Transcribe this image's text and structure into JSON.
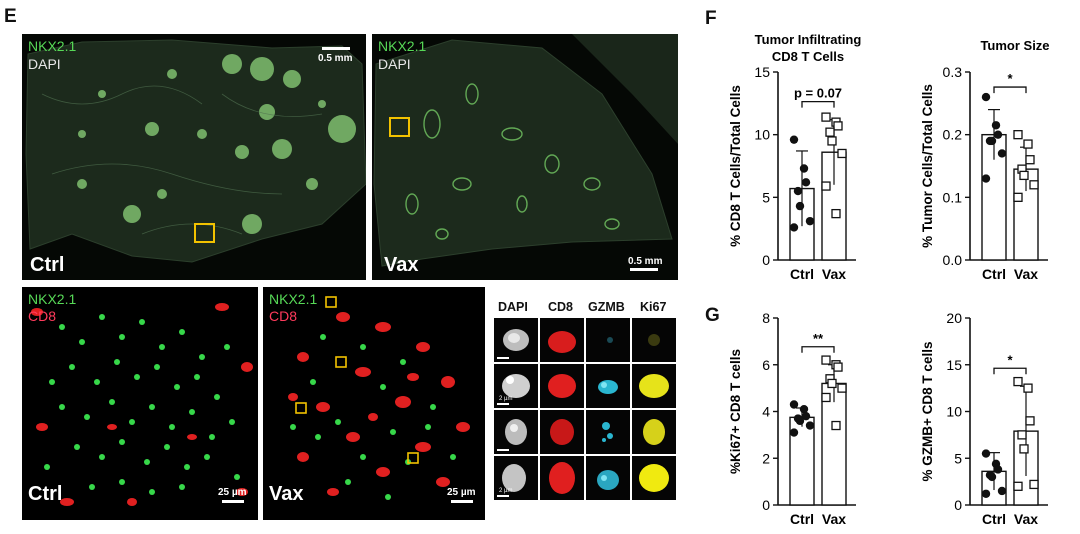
{
  "panels": {
    "E": "E",
    "F": "F",
    "G": "G"
  },
  "microscopy": {
    "channel_nkx": "NKX2.1",
    "channel_dapi": "DAPI",
    "channel_cd8": "CD8",
    "ctrl": "Ctrl",
    "vax": "Vax",
    "scale_05": "0.5 mm",
    "scale_25": "25 µm",
    "zoom_box_color": "#f2c200",
    "inset_headers": [
      "DAPI",
      "CD8",
      "GZMB",
      "Ki67"
    ],
    "inset_scale": "2 µm"
  },
  "chart_data": [
    {
      "type": "bar",
      "title": "Tumor Infiltrating CD8 T Cells",
      "ylabel": "% CD8 T Cells/Total Cells",
      "categories": [
        "Ctrl",
        "Vax"
      ],
      "values": [
        5.7,
        8.6
      ],
      "error": [
        3.0,
        2.6
      ],
      "ylim": [
        0,
        15
      ],
      "yticks": [
        "0",
        "5",
        "10",
        "15"
      ],
      "points": {
        "Ctrl": [
          9.6,
          7.3,
          6.2,
          5.5,
          4.3,
          3.1,
          2.6
        ],
        "Vax": [
          11.4,
          11.0,
          10.7,
          10.2,
          9.5,
          8.5,
          5.9,
          3.7
        ]
      },
      "annotation": "p = 0.07"
    },
    {
      "type": "bar",
      "title": "Tumor Size",
      "ylabel": "% Tumor Cells/Total Cells",
      "categories": [
        "Ctrl",
        "Vax"
      ],
      "values": [
        0.2,
        0.145
      ],
      "error": [
        0.04,
        0.035
      ],
      "ylim": [
        0,
        0.3
      ],
      "yticks": [
        "0.0",
        "0.1",
        "0.2",
        "0.3"
      ],
      "points": {
        "Ctrl": [
          0.26,
          0.215,
          0.2,
          0.19,
          0.19,
          0.17,
          0.13
        ],
        "Vax": [
          0.2,
          0.185,
          0.16,
          0.145,
          0.135,
          0.12,
          0.1
        ]
      },
      "annotation": "*"
    },
    {
      "type": "bar",
      "ylabel": "%Ki67+ CD8 T cells",
      "categories": [
        "Ctrl",
        "Vax"
      ],
      "values": [
        3.75,
        5.2
      ],
      "error": [
        0.4,
        0.8
      ],
      "ylim": [
        0,
        8
      ],
      "yticks": [
        "0",
        "2",
        "4",
        "6",
        "8"
      ],
      "points": {
        "Ctrl": [
          4.3,
          4.1,
          3.8,
          3.7,
          3.6,
          3.4,
          3.1
        ],
        "Vax": [
          6.2,
          6.0,
          5.9,
          5.4,
          5.2,
          5.0,
          4.6,
          3.4
        ]
      },
      "annotation": "**"
    },
    {
      "type": "bar",
      "ylabel": "% GZMB+ CD8 T cells",
      "categories": [
        "Ctrl",
        "Vax"
      ],
      "values": [
        3.6,
        7.9
      ],
      "error": [
        2.0,
        4.8
      ],
      "ylim": [
        0,
        20
      ],
      "yticks": [
        "0",
        "5",
        "10",
        "15",
        "20"
      ],
      "points": {
        "Ctrl": [
          5.5,
          4.4,
          3.8,
          3.2,
          3.0,
          1.5,
          1.2
        ],
        "Vax": [
          13.2,
          12.5,
          9.0,
          7.5,
          6.0,
          2.2,
          2.0
        ]
      },
      "annotation": "*"
    }
  ]
}
